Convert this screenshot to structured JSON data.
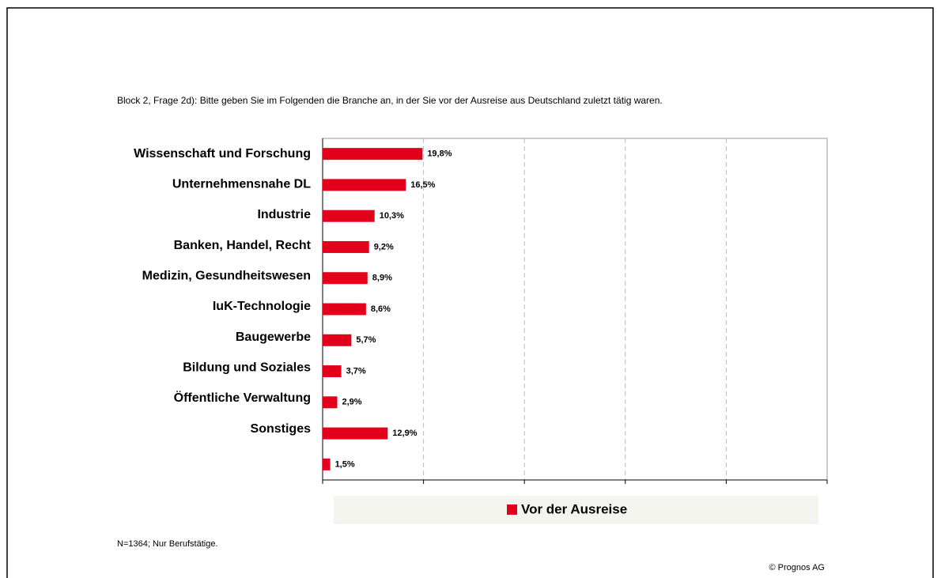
{
  "chart_data": {
    "type": "barh",
    "title": "Block 2, Frage 2d): Bitte geben Sie im Folgenden die Branche an, in der Sie vor der Ausreise aus Deutschland zuletzt tätig waren.",
    "categories": [
      "Wissenschaft und Forschung",
      "Unternehmensnahe DL",
      "Industrie",
      "Banken, Handel, Recht",
      "Medizin, Gesundheitswesen",
      "IuK-Technologie",
      "Baugewerbe",
      "Bildung und Soziales",
      "Öffentliche Verwaltung",
      "Sonstiges",
      null
    ],
    "series": [
      {
        "name": "Vor der Ausreise",
        "color": "#e2001a",
        "values": [
          19.8,
          16.5,
          10.3,
          9.2,
          8.9,
          8.6,
          5.7,
          3.7,
          2.9,
          12.9,
          1.5
        ],
        "value_labels": [
          "19,8%",
          "16,5%",
          "10,3%",
          "9,2%",
          "8,9%",
          "8,6%",
          "5,7%",
          "3,7%",
          "2,9%",
          "12,9%",
          "1,5%"
        ]
      }
    ],
    "xlim": [
      0,
      100
    ],
    "xticks": [
      0,
      20,
      40,
      60,
      80,
      100
    ],
    "grid": true,
    "legend": "bottom",
    "footnote": "N=1364; Nur Berufstätige.",
    "source": "© Prognos AG"
  }
}
